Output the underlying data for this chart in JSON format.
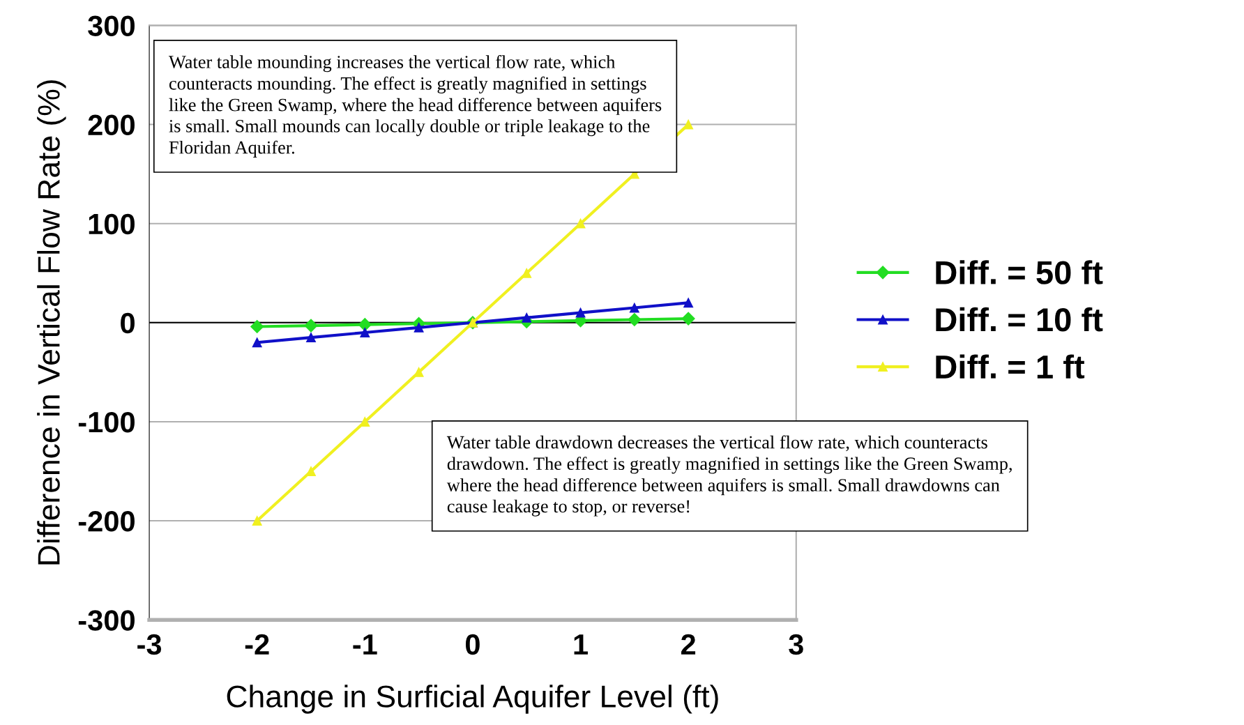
{
  "chart_data": {
    "type": "line",
    "xlabel": "Change in Surficial Aquifer Level (ft)",
    "ylabel": "Difference in Vertical Flow Rate (%)",
    "x": [
      -2,
      -1.5,
      -1,
      -0.5,
      0,
      0.5,
      1,
      1.5,
      2
    ],
    "series": [
      {
        "name": "Diff. = 50 ft",
        "color": "#22dd22",
        "marker": "diamond",
        "values": [
          -4,
          -3,
          -2,
          -1,
          0,
          1,
          2,
          3,
          4
        ]
      },
      {
        "name": "Diff. = 10 ft",
        "color": "#1010c8",
        "marker": "triangle",
        "values": [
          -20,
          -15,
          -10,
          -5,
          0,
          5,
          10,
          15,
          20
        ]
      },
      {
        "name": "Diff. = 1 ft",
        "color": "#f0f020",
        "marker": "triangle",
        "values": [
          -200,
          -150,
          -100,
          -50,
          0,
          50,
          100,
          150,
          200
        ]
      }
    ],
    "xlim": [
      -3,
      3
    ],
    "xticks": [
      -3,
      -2,
      -1,
      0,
      1,
      2,
      3
    ],
    "ylim": [
      -300,
      300
    ],
    "yticks": [
      -300,
      -200,
      -100,
      0,
      100,
      200,
      300
    ],
    "grid": "y",
    "legend": "right",
    "ref_lines": [
      {
        "axis": "y",
        "value": 0,
        "color": "#000000"
      }
    ],
    "annotations": [
      "Water table mounding increases the vertical flow rate, which counteracts mounding. The effect is greatly magnified in settings like the Green Swamp, where the head difference between aquifers is small. Small mounds can locally double or triple leakage to the Floridan Aquifer.",
      "Water table drawdown decreases the vertical flow rate, which counteracts drawdown. The effect is greatly magnified in settings like the Green Swamp, where the head difference between aquifers is small. Small drawdowns can cause leakage to stop, or reverse!"
    ]
  }
}
